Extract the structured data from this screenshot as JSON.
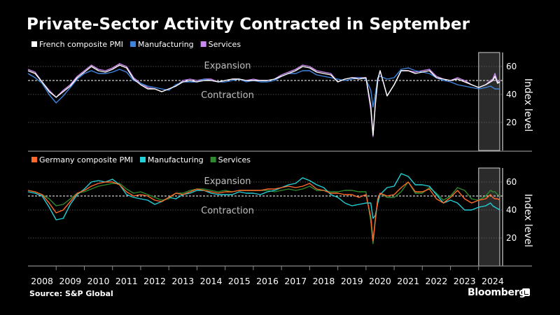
{
  "title": "Private-Sector Activity Contracted in September",
  "source": "Source: S&P Global",
  "brand": "Bloomberg",
  "colors": {
    "composite": "#ffffff",
    "fr_manufacturing": "#3d85e0",
    "fr_services": "#cc88f0",
    "de_composite": "#ff6a2a",
    "de_manufacturing": "#22d0d8",
    "de_services": "#2f8a2f",
    "gridline": "#666666",
    "baseline": "#ffffff"
  },
  "chart_data": [
    {
      "type": "line",
      "title": "",
      "ylabel": "Index level",
      "ylim": [
        0,
        70
      ],
      "yticks": [
        20,
        40,
        60
      ],
      "xlim": [
        2008,
        2024.85
      ],
      "reference_line": 50,
      "annotation_above": "Expansion",
      "annotation_below": "Contraction",
      "shaded_range": [
        2024,
        2024.75
      ],
      "legend_position": "top-left",
      "x": [
        2008.0,
        2008.25,
        2008.5,
        2008.75,
        2009.0,
        2009.25,
        2009.5,
        2009.75,
        2010.0,
        2010.25,
        2010.5,
        2010.75,
        2011.0,
        2011.25,
        2011.5,
        2011.75,
        2012.0,
        2012.25,
        2012.5,
        2012.75,
        2013.0,
        2013.25,
        2013.5,
        2013.75,
        2014.0,
        2014.25,
        2014.5,
        2014.75,
        2015.0,
        2015.25,
        2015.5,
        2015.75,
        2016.0,
        2016.25,
        2016.5,
        2016.75,
        2017.0,
        2017.25,
        2017.5,
        2017.75,
        2018.0,
        2018.25,
        2018.5,
        2018.75,
        2019.0,
        2019.25,
        2019.5,
        2019.75,
        2020.0,
        2020.17,
        2020.25,
        2020.33,
        2020.42,
        2020.5,
        2020.75,
        2021.0,
        2021.25,
        2021.5,
        2021.75,
        2022.0,
        2022.25,
        2022.5,
        2022.75,
        2023.0,
        2023.25,
        2023.5,
        2023.75,
        2024.0,
        2024.25,
        2024.42,
        2024.5,
        2024.58,
        2024.67,
        2024.75
      ],
      "series": [
        {
          "name": "French composite PMI",
          "color_key": "composite",
          "values": [
            57,
            55,
            49,
            42,
            38,
            42,
            46,
            52,
            56,
            60,
            57,
            56,
            58,
            61,
            59,
            51,
            47,
            44,
            44,
            42,
            44,
            46,
            49,
            50,
            49,
            50,
            50,
            49,
            50,
            51,
            51,
            50,
            50,
            50,
            50,
            51,
            53,
            55,
            57,
            60,
            59,
            56,
            55,
            54,
            49,
            51,
            52,
            51,
            52,
            32,
            11,
            33,
            51,
            57,
            39,
            47,
            57,
            57,
            55,
            56,
            57,
            52,
            51,
            50,
            51,
            49,
            47,
            45,
            47,
            49,
            50,
            53,
            48,
            49
          ]
        },
        {
          "name": "Manufacturing",
          "color_key": "fr_manufacturing",
          "values": [
            55,
            52,
            48,
            40,
            34,
            39,
            45,
            51,
            55,
            57,
            55,
            55,
            56,
            58,
            56,
            50,
            48,
            46,
            45,
            44,
            43,
            47,
            49,
            49,
            49,
            51,
            50,
            49,
            49,
            50,
            51,
            49,
            50,
            49,
            49,
            50,
            53,
            55,
            55,
            57,
            57,
            54,
            53,
            52,
            51,
            50,
            51,
            52,
            51,
            43,
            31,
            40,
            52,
            53,
            51,
            52,
            58,
            59,
            57,
            56,
            55,
            52,
            50,
            49,
            47,
            46,
            45,
            44,
            45,
            46,
            45,
            44,
            44,
            44
          ]
        },
        {
          "name": "Services",
          "color_key": "fr_services",
          "values": [
            58,
            56,
            49,
            43,
            38,
            43,
            47,
            53,
            57,
            61,
            58,
            57,
            59,
            62,
            60,
            52,
            48,
            45,
            44,
            42,
            44,
            46,
            50,
            51,
            50,
            51,
            51,
            49,
            50,
            51,
            51,
            50,
            51,
            50,
            50,
            51,
            54,
            56,
            58,
            61,
            60,
            57,
            56,
            55,
            49,
            51,
            52,
            52,
            52,
            29,
            10,
            32,
            50,
            57,
            39,
            47,
            57,
            57,
            56,
            57,
            58,
            53,
            51,
            50,
            52,
            50,
            47,
            45,
            47,
            50,
            51,
            55,
            49,
            49
          ]
        }
      ]
    },
    {
      "type": "line",
      "title": "",
      "ylabel": "Index level",
      "ylim": [
        0,
        70
      ],
      "yticks": [
        20,
        40,
        60
      ],
      "xlim": [
        2008,
        2024.85
      ],
      "reference_line": 50,
      "annotation_above": "Expansion",
      "annotation_below": "Contraction",
      "shaded_range": [
        2024,
        2024.75
      ],
      "legend_position": "top-left",
      "x_tick_labels": [
        "2008",
        "2009",
        "2010",
        "2011",
        "2012",
        "2013",
        "2014",
        "2015",
        "2016",
        "2017",
        "2018",
        "2019",
        "2020",
        "2021",
        "2022",
        "2023",
        "2024"
      ],
      "x": [
        2008.0,
        2008.25,
        2008.5,
        2008.75,
        2009.0,
        2009.25,
        2009.5,
        2009.75,
        2010.0,
        2010.25,
        2010.5,
        2010.75,
        2011.0,
        2011.25,
        2011.5,
        2011.75,
        2012.0,
        2012.25,
        2012.5,
        2012.75,
        2013.0,
        2013.25,
        2013.5,
        2013.75,
        2014.0,
        2014.25,
        2014.5,
        2014.75,
        2015.0,
        2015.25,
        2015.5,
        2015.75,
        2016.0,
        2016.25,
        2016.5,
        2016.75,
        2017.0,
        2017.25,
        2017.5,
        2017.75,
        2018.0,
        2018.25,
        2018.5,
        2018.75,
        2019.0,
        2019.25,
        2019.5,
        2019.75,
        2020.0,
        2020.17,
        2020.25,
        2020.33,
        2020.42,
        2020.5,
        2020.75,
        2021.0,
        2021.25,
        2021.5,
        2021.75,
        2022.0,
        2022.25,
        2022.5,
        2022.75,
        2023.0,
        2023.25,
        2023.5,
        2023.75,
        2024.0,
        2024.25,
        2024.42,
        2024.5,
        2024.58,
        2024.67,
        2024.75
      ],
      "series": [
        {
          "name": "Germany composite PMI",
          "color_key": "de_composite",
          "values": [
            54,
            53,
            51,
            45,
            38,
            40,
            46,
            52,
            54,
            57,
            59,
            60,
            60,
            58,
            53,
            50,
            51,
            50,
            47,
            46,
            49,
            52,
            51,
            53,
            55,
            54,
            53,
            52,
            53,
            53,
            54,
            54,
            54,
            54,
            55,
            55,
            56,
            57,
            56,
            57,
            59,
            55,
            54,
            52,
            52,
            51,
            51,
            49,
            51,
            35,
            18,
            33,
            48,
            52,
            50,
            51,
            56,
            60,
            53,
            53,
            55,
            48,
            45,
            49,
            54,
            48,
            45,
            47,
            48,
            51,
            49,
            48,
            48,
            47
          ]
        },
        {
          "name": "Manufacturing",
          "color_key": "de_manufacturing",
          "values": [
            53,
            52,
            50,
            42,
            33,
            34,
            44,
            51,
            55,
            60,
            61,
            60,
            62,
            58,
            51,
            49,
            48,
            47,
            44,
            46,
            49,
            48,
            51,
            52,
            54,
            54,
            52,
            51,
            51,
            51,
            53,
            52,
            52,
            51,
            53,
            54,
            56,
            58,
            59,
            63,
            61,
            58,
            56,
            51,
            49,
            45,
            43,
            44,
            45,
            45,
            34,
            36,
            45,
            51,
            56,
            57,
            66,
            64,
            58,
            58,
            57,
            51,
            45,
            47,
            45,
            40,
            40,
            42,
            43,
            45,
            43,
            42,
            41,
            40
          ]
        },
        {
          "name": "Services",
          "color_key": "de_services",
          "values": [
            54,
            53,
            51,
            48,
            43,
            44,
            48,
            52,
            53,
            55,
            57,
            58,
            59,
            59,
            55,
            52,
            53,
            51,
            49,
            47,
            48,
            52,
            52,
            54,
            55,
            55,
            54,
            53,
            54,
            53,
            54,
            54,
            54,
            54,
            54,
            53,
            54,
            55,
            54,
            55,
            57,
            54,
            54,
            53,
            53,
            54,
            54,
            53,
            53,
            32,
            16,
            32,
            47,
            52,
            49,
            49,
            53,
            60,
            52,
            52,
            56,
            52,
            47,
            50,
            56,
            54,
            48,
            47,
            50,
            54,
            53,
            53,
            51,
            50
          ]
        }
      ]
    }
  ]
}
